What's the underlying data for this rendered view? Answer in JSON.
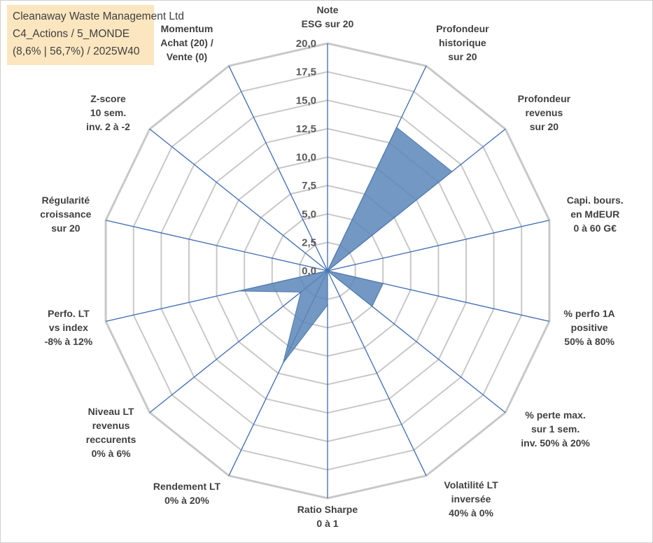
{
  "info": {
    "company": "Cleanaway Waste Management Ltd",
    "portfolio": "C4_Actions / 5_MONDE",
    "stats": "(8,6% | 56,7%) / 2025W40"
  },
  "colors": {
    "fill": "#5b86b9",
    "fill_stroke": "#4f79ad",
    "axis_line": "#3d6bb3",
    "grid": "#c8c8c8",
    "info_bg": "#fbe6bf"
  },
  "chart_data": {
    "type": "radar",
    "title": "",
    "rmin": 0,
    "rmax": 20,
    "tick_step": 2.5,
    "tick_labels": [
      "0,0",
      "2,5",
      "5,0",
      "7,5",
      "10,0",
      "12,5",
      "15,0",
      "17,5",
      "20,0"
    ],
    "axes": [
      "Note\nESG sur 20",
      "Profondeur\nhistorique\nsur 20",
      "Profondeur\nrevenus\nsur 20",
      "Capi. bours.\nen MdEUR\n0 à 60 G€",
      "% perfo 1A\npositive\n50% à 80%",
      "% perte max.\nsur 1 sem.\ninv. 50% à 20%",
      "Volatilité LT\ninversée\n40% à 0%",
      "Ratio Sharpe\n0 à 1",
      "Rendement LT\n0% à 20%",
      "Niveau LT\nrevenus\nreccurents\n0% à 6%",
      "Perfo. LT\nvs index\n-8% à 12%",
      "Régularité\ncroissance\nsur 20",
      "Z-score\n10 sem.\ninv. 2 à -2",
      "Momentum\nAchat (20) /\nVente (0)"
    ],
    "series": [
      {
        "name": "Cleanaway Waste Management Ltd",
        "values": [
          0,
          14,
          14,
          0,
          5,
          5,
          0,
          3,
          9,
          3,
          8,
          0,
          0,
          0
        ]
      }
    ]
  }
}
